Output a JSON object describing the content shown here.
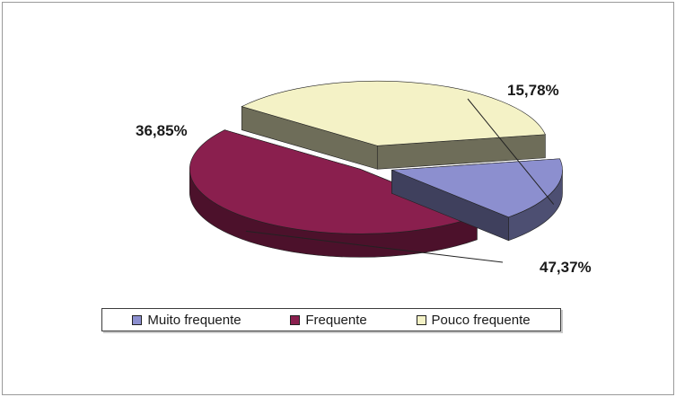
{
  "chart_data": {
    "type": "pie",
    "style": "3d-exploded",
    "legend_position": "bottom",
    "slices": [
      {
        "label": "Muito frequente",
        "value": 15.78,
        "display": "15,78%",
        "color": "#8c8fcf"
      },
      {
        "label": "Frequente",
        "value": 47.37,
        "display": "47,37%",
        "color": "#8a1f4e"
      },
      {
        "label": "Pouco frequente",
        "value": 36.85,
        "display": "36,85%",
        "color": "#f4f2c6"
      }
    ]
  }
}
